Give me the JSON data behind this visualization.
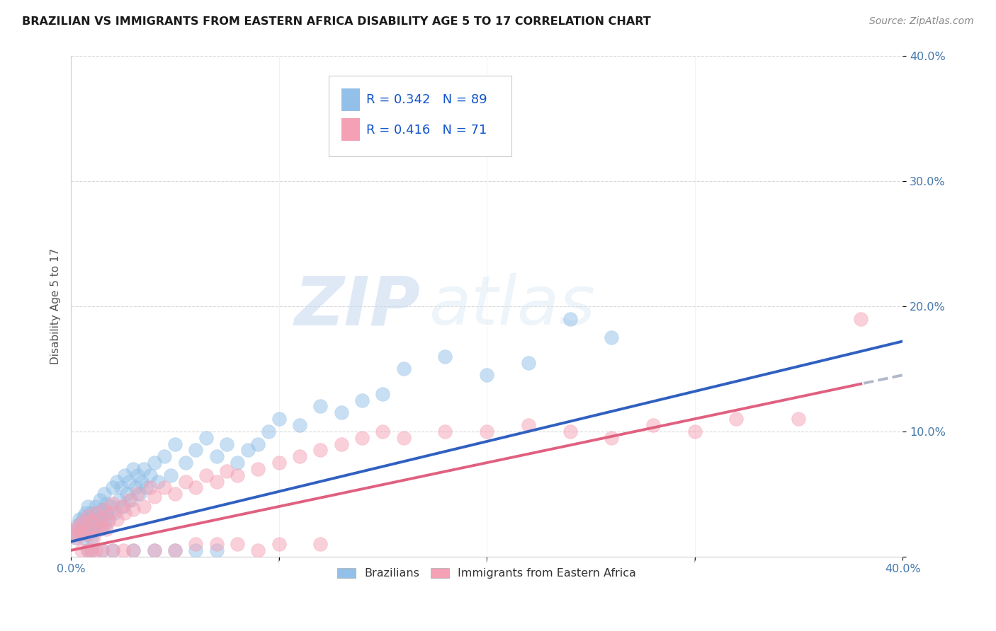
{
  "title": "BRAZILIAN VS IMMIGRANTS FROM EASTERN AFRICA DISABILITY AGE 5 TO 17 CORRELATION CHART",
  "source": "Source: ZipAtlas.com",
  "xlabel": "",
  "ylabel": "Disability Age 5 to 17",
  "xlim": [
    0.0,
    0.4
  ],
  "ylim": [
    0.0,
    0.4
  ],
  "xticks": [
    0.0,
    0.1,
    0.2,
    0.3,
    0.4
  ],
  "yticks": [
    0.0,
    0.1,
    0.2,
    0.3,
    0.4
  ],
  "xtick_labels": [
    "0.0%",
    "",
    "",
    "",
    "40.0%"
  ],
  "ytick_labels": [
    "",
    "10.0%",
    "20.0%",
    "30.0%",
    "40.0%"
  ],
  "legend_labels": [
    "Brazilians",
    "Immigrants from Eastern Africa"
  ],
  "watermark_zip": "ZIP",
  "watermark_atlas": "atlas",
  "R_brazilian": 0.342,
  "N_brazilian": 89,
  "R_eastern": 0.416,
  "N_eastern": 71,
  "color_blue": "#92C0E8",
  "color_pink": "#F4A0B5",
  "trendline_blue": "#3060C0",
  "trendline_pink": "#E06080",
  "trendline_gray": "#B0B8C8",
  "background_color": "#FFFFFF",
  "grid_color": "#D8D8D8",
  "title_color": "#1a1a1a",
  "axis_label_color": "#4477AA",
  "legend_text_color": "#1155CC",
  "blue_intercept": 0.012,
  "blue_slope": 0.4,
  "pink_intercept": 0.005,
  "pink_slope": 0.35,
  "scatter_blue_x": [
    0.001,
    0.002,
    0.003,
    0.004,
    0.004,
    0.005,
    0.005,
    0.006,
    0.006,
    0.007,
    0.007,
    0.007,
    0.008,
    0.008,
    0.008,
    0.009,
    0.009,
    0.01,
    0.01,
    0.01,
    0.011,
    0.011,
    0.012,
    0.012,
    0.013,
    0.013,
    0.014,
    0.014,
    0.015,
    0.015,
    0.016,
    0.016,
    0.017,
    0.017,
    0.018,
    0.019,
    0.02,
    0.021,
    0.022,
    0.023,
    0.024,
    0.025,
    0.026,
    0.027,
    0.028,
    0.029,
    0.03,
    0.031,
    0.032,
    0.033,
    0.034,
    0.035,
    0.036,
    0.038,
    0.04,
    0.042,
    0.045,
    0.048,
    0.05,
    0.055,
    0.06,
    0.065,
    0.07,
    0.075,
    0.08,
    0.085,
    0.09,
    0.095,
    0.1,
    0.11,
    0.12,
    0.13,
    0.14,
    0.15,
    0.16,
    0.18,
    0.2,
    0.22,
    0.24,
    0.26,
    0.008,
    0.01,
    0.015,
    0.02,
    0.03,
    0.04,
    0.05,
    0.06,
    0.07
  ],
  "scatter_blue_y": [
    0.02,
    0.015,
    0.025,
    0.018,
    0.03,
    0.022,
    0.028,
    0.015,
    0.032,
    0.02,
    0.035,
    0.025,
    0.018,
    0.03,
    0.04,
    0.022,
    0.028,
    0.015,
    0.035,
    0.025,
    0.03,
    0.02,
    0.04,
    0.025,
    0.035,
    0.028,
    0.022,
    0.045,
    0.03,
    0.038,
    0.025,
    0.05,
    0.035,
    0.042,
    0.03,
    0.04,
    0.055,
    0.035,
    0.06,
    0.045,
    0.055,
    0.04,
    0.065,
    0.05,
    0.06,
    0.045,
    0.07,
    0.055,
    0.065,
    0.05,
    0.06,
    0.07,
    0.055,
    0.065,
    0.075,
    0.06,
    0.08,
    0.065,
    0.09,
    0.075,
    0.085,
    0.095,
    0.08,
    0.09,
    0.075,
    0.085,
    0.09,
    0.1,
    0.11,
    0.105,
    0.12,
    0.115,
    0.125,
    0.13,
    0.15,
    0.16,
    0.145,
    0.155,
    0.19,
    0.175,
    0.005,
    0.005,
    0.005,
    0.005,
    0.005,
    0.005,
    0.005,
    0.005,
    0.005
  ],
  "scatter_pink_x": [
    0.001,
    0.002,
    0.003,
    0.004,
    0.005,
    0.006,
    0.007,
    0.008,
    0.009,
    0.01,
    0.011,
    0.012,
    0.013,
    0.014,
    0.015,
    0.016,
    0.017,
    0.018,
    0.019,
    0.02,
    0.022,
    0.024,
    0.026,
    0.028,
    0.03,
    0.032,
    0.035,
    0.038,
    0.04,
    0.045,
    0.05,
    0.055,
    0.06,
    0.065,
    0.07,
    0.075,
    0.08,
    0.09,
    0.1,
    0.11,
    0.12,
    0.13,
    0.14,
    0.15,
    0.16,
    0.18,
    0.2,
    0.22,
    0.24,
    0.26,
    0.28,
    0.3,
    0.32,
    0.35,
    0.38,
    0.005,
    0.008,
    0.01,
    0.012,
    0.015,
    0.02,
    0.025,
    0.03,
    0.04,
    0.05,
    0.06,
    0.07,
    0.08,
    0.09,
    0.1,
    0.12
  ],
  "scatter_pink_y": [
    0.018,
    0.022,
    0.015,
    0.025,
    0.02,
    0.028,
    0.018,
    0.032,
    0.022,
    0.028,
    0.015,
    0.035,
    0.022,
    0.03,
    0.025,
    0.038,
    0.022,
    0.028,
    0.035,
    0.042,
    0.03,
    0.04,
    0.035,
    0.045,
    0.038,
    0.05,
    0.04,
    0.055,
    0.048,
    0.055,
    0.05,
    0.06,
    0.055,
    0.065,
    0.06,
    0.068,
    0.065,
    0.07,
    0.075,
    0.08,
    0.085,
    0.09,
    0.095,
    0.1,
    0.095,
    0.1,
    0.1,
    0.105,
    0.1,
    0.095,
    0.105,
    0.1,
    0.11,
    0.11,
    0.19,
    0.005,
    0.005,
    0.005,
    0.005,
    0.005,
    0.005,
    0.005,
    0.005,
    0.005,
    0.005,
    0.01,
    0.01,
    0.01,
    0.005,
    0.01,
    0.01
  ]
}
